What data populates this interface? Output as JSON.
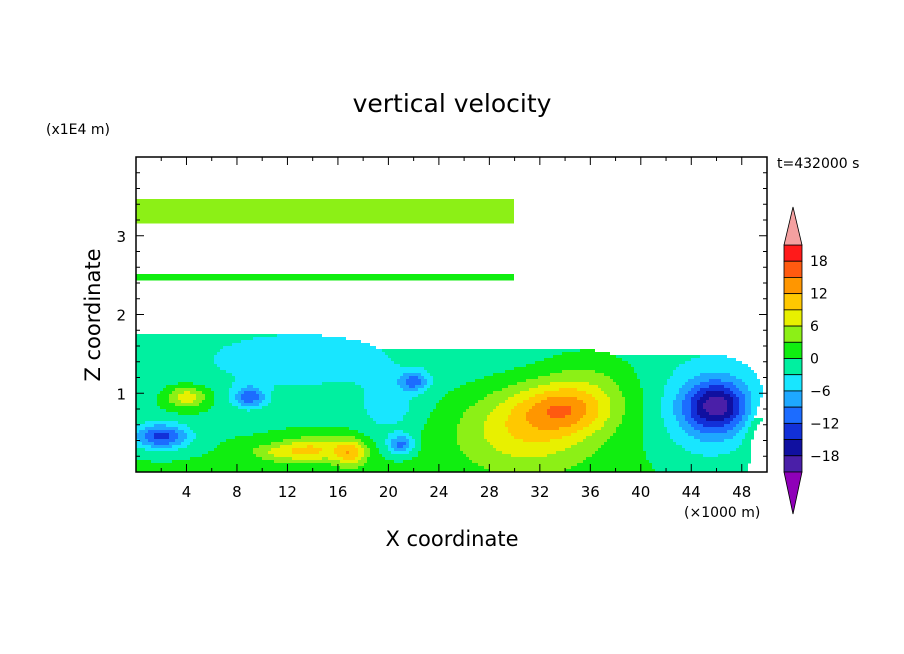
{
  "chart_data": {
    "type": "heatmap",
    "title": "vertical velocity",
    "xlabel": "X coordinate",
    "ylabel": "Z coordinate",
    "x_unit": "(×1000 m)",
    "y_unit": "(x1E4 m)",
    "time_label": "t=432000 s",
    "xlim": [
      0,
      50
    ],
    "ylim": [
      0,
      4
    ],
    "x_ticks": [
      4,
      8,
      12,
      16,
      20,
      24,
      28,
      32,
      36,
      40,
      44,
      48
    ],
    "y_ticks": [
      1,
      2,
      3
    ],
    "colorbar": {
      "ticks": [
        18,
        12,
        6,
        0,
        -6,
        -12,
        -18
      ],
      "levels": [
        -21,
        -18,
        -15,
        -12,
        -9,
        -6,
        -3,
        0,
        3,
        6,
        9,
        12,
        15,
        18,
        21
      ],
      "colors": [
        "#8f00b8",
        "#4a1fa8",
        "#1010a0",
        "#1230d8",
        "#1c6cff",
        "#1ea8ff",
        "#18e6ff",
        "#00f0a0",
        "#10ee10",
        "#8cf016",
        "#e8f000",
        "#ffc800",
        "#ff9600",
        "#ff5a10",
        "#ff1a1a",
        "#f4a0a0"
      ],
      "extend": "both"
    },
    "features": [
      {
        "x": 34,
        "z": 0.8,
        "peak": 14
      },
      {
        "x": 46,
        "z": 0.85,
        "peak": -18
      },
      {
        "x": 2,
        "z": 0.45,
        "peak": -13
      },
      {
        "x": 9,
        "z": 0.95,
        "peak": -10
      },
      {
        "x": 4,
        "z": 0.95,
        "peak": 7
      },
      {
        "x": 14,
        "z": 0.28,
        "peak": 8
      },
      {
        "x": 17,
        "z": 0.25,
        "peak": 9
      },
      {
        "x": 21,
        "z": 0.35,
        "peak": -10
      },
      {
        "x": 22,
        "z": 1.15,
        "peak": -8
      }
    ]
  }
}
